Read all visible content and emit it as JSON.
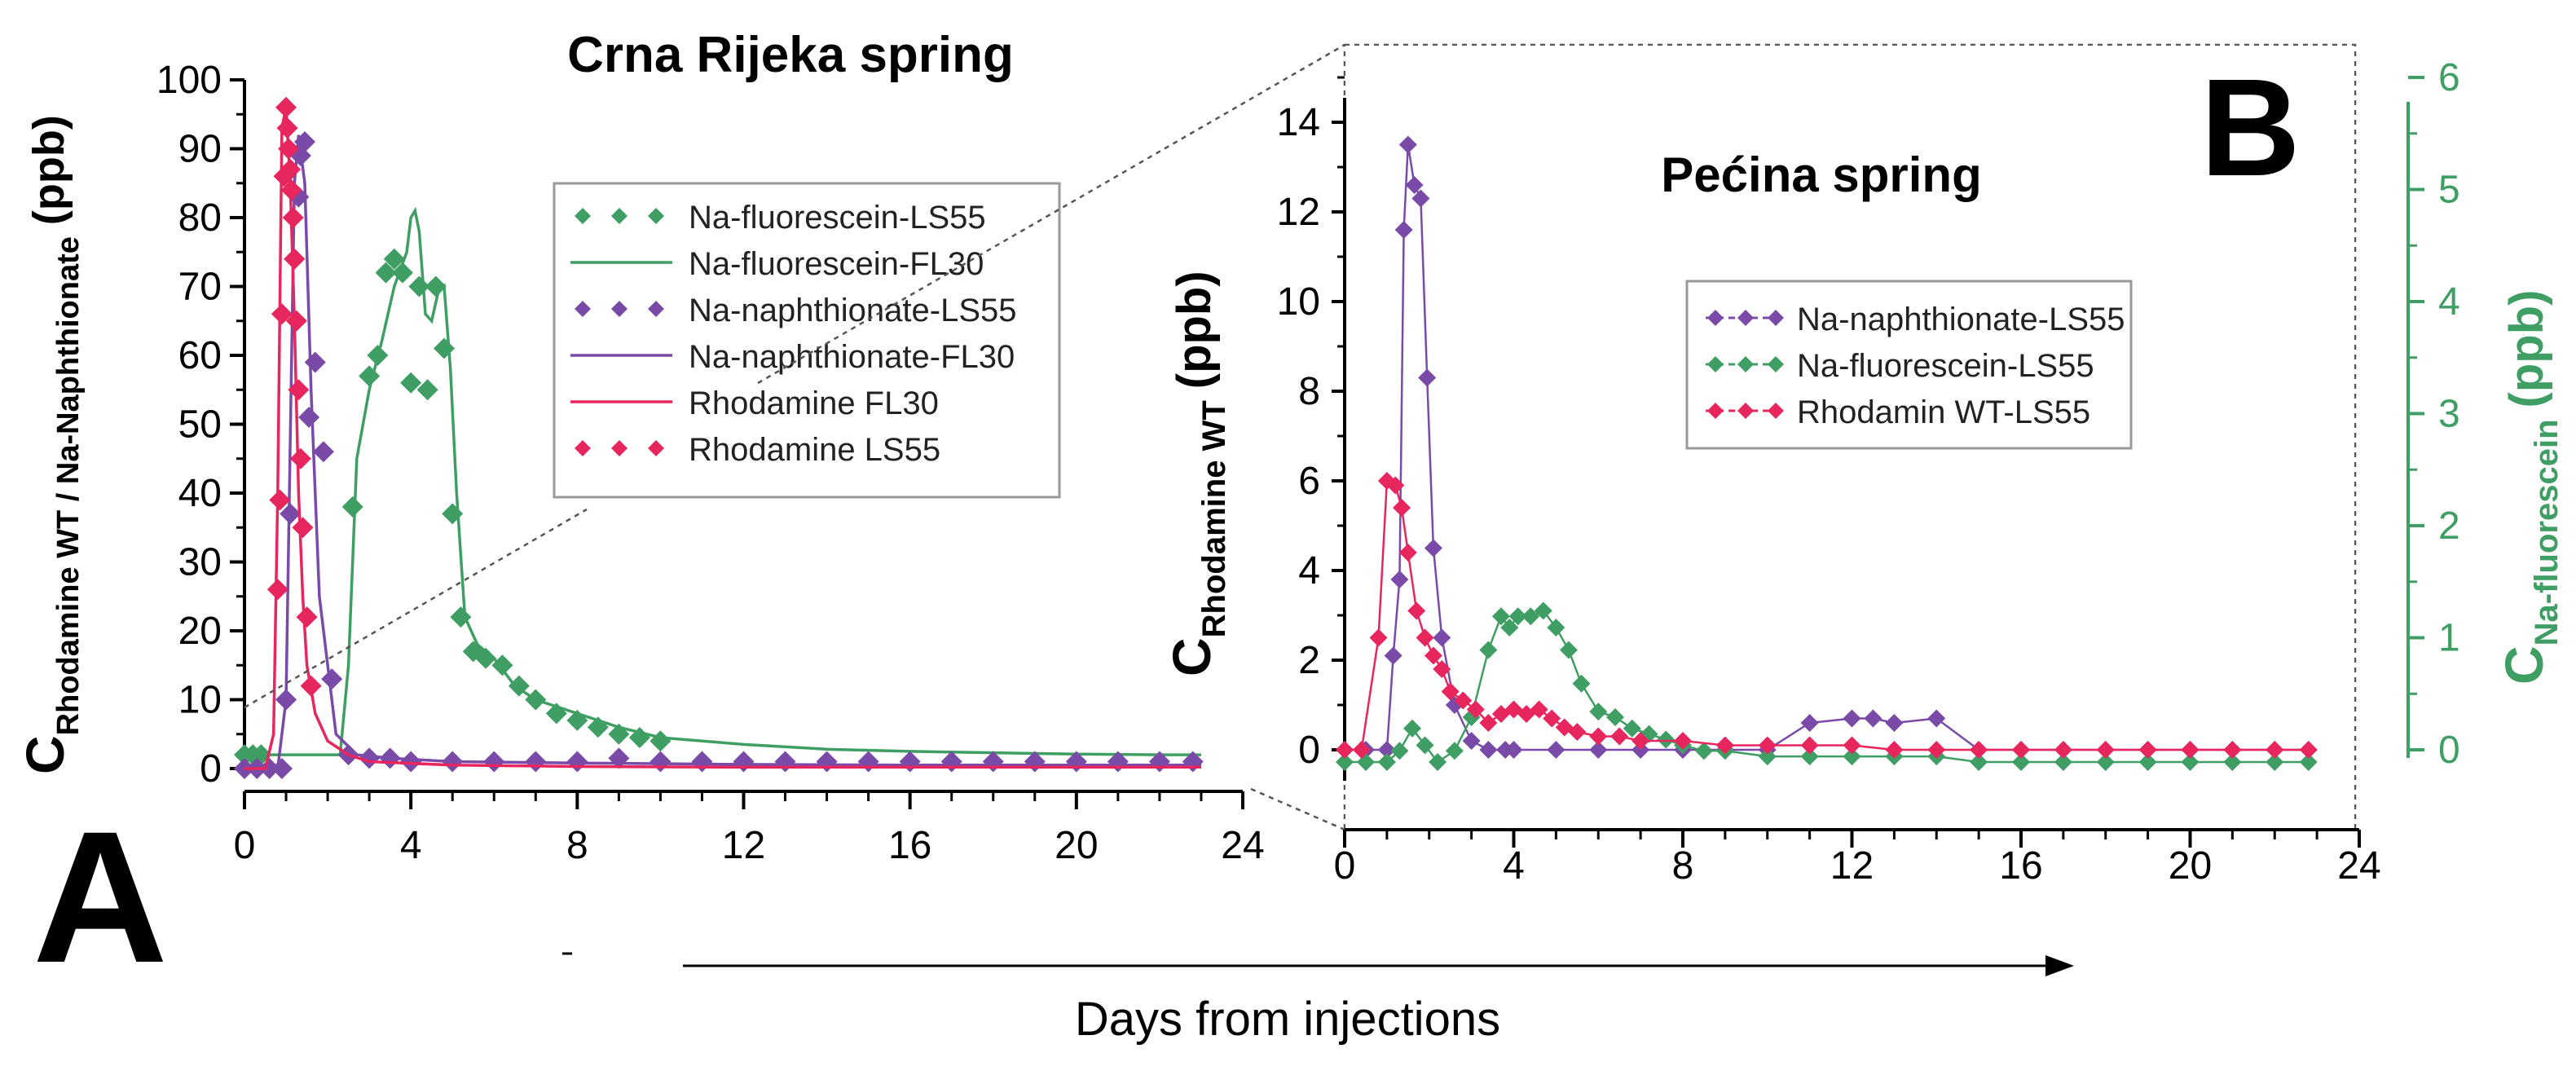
{
  "figure": {
    "shared_xlabel": "Days from injections",
    "colors": {
      "green": "#3f9e63",
      "purple": "#7a4aa8",
      "red": "#e8265e",
      "axis": "#000000",
      "right_axis": "#3f9e63"
    }
  },
  "chart_data": [
    {
      "panel_letter": "A",
      "type": "line",
      "title": "Crna Rijeka spring",
      "ylabel_main": "C",
      "ylabel_sub": "Rhodamine WT / Na-Naphthionate",
      "ylabel_unit": "(ppb)",
      "xlim": [
        0,
        24
      ],
      "ylim": [
        0,
        100
      ],
      "xticks": [
        "0",
        "4",
        "8",
        "12",
        "16",
        "20",
        "24"
      ],
      "yticks": [
        "0",
        "10",
        "20",
        "30",
        "40",
        "50",
        "60",
        "70",
        "80",
        "90",
        "100"
      ],
      "legend": [
        {
          "label": "Na-fluorescein-LS55",
          "style": "markers",
          "color": "green"
        },
        {
          "label": "Na-fluorescein-FL30",
          "style": "line",
          "color": "green"
        },
        {
          "label": "Na-naphthionate-LS55",
          "style": "markers",
          "color": "purple"
        },
        {
          "label": "Na-naphthionate-FL30",
          "style": "line",
          "color": "purple"
        },
        {
          "label": "Rhodamine FL30",
          "style": "line",
          "color": "red"
        },
        {
          "label": "Rhodamine LS55",
          "style": "markers",
          "color": "red"
        }
      ],
      "series": [
        {
          "name": "Na-fluorescein-FL30",
          "style": "line",
          "color": "green",
          "x": [
            0,
            2.3,
            2.5,
            2.7,
            3.0,
            3.3,
            3.6,
            3.9,
            4.0,
            4.1,
            4.2,
            4.35,
            4.5,
            4.65,
            4.8,
            4.95,
            5.1,
            5.3,
            5.6,
            6.0,
            6.5,
            7.0,
            8.0,
            9.0,
            10,
            12,
            14,
            16,
            18,
            20,
            22,
            23
          ],
          "y": [
            2,
            2,
            15,
            45,
            55,
            62,
            70,
            75,
            80,
            81,
            78,
            66,
            65,
            69,
            70,
            58,
            40,
            22,
            18,
            16,
            12,
            10,
            8,
            6,
            4.5,
            3.5,
            2.8,
            2.5,
            2.3,
            2.1,
            2,
            2
          ]
        },
        {
          "name": "Na-fluorescein-LS55",
          "style": "markers",
          "color": "green",
          "x": [
            0,
            0.2,
            0.4,
            2.6,
            3.0,
            3.2,
            3.4,
            3.6,
            3.8,
            4.0,
            4.2,
            4.4,
            4.6,
            4.8,
            5.0,
            5.2,
            5.5,
            5.8,
            6.2,
            6.6,
            7.0,
            7.5,
            8.0,
            8.5,
            9.0,
            9.5,
            10.0
          ],
          "y": [
            2,
            2,
            2,
            38,
            57,
            60,
            72,
            74,
            72,
            56,
            70,
            55,
            70,
            61,
            37,
            22,
            17,
            16,
            15,
            12,
            10,
            8,
            7,
            6,
            5,
            4.5,
            4
          ]
        },
        {
          "name": "Na-naphthionate-FL30",
          "style": "line",
          "color": "purple",
          "x": [
            0,
            0.8,
            1.0,
            1.2,
            1.3,
            1.45,
            1.6,
            1.8,
            2.2,
            2.7,
            3.5,
            5,
            8,
            12,
            16,
            20,
            23
          ],
          "y": [
            0,
            0,
            10,
            85,
            92,
            85,
            55,
            25,
            5,
            2,
            1.5,
            1,
            0.8,
            0.6,
            0.5,
            0.5,
            0.5
          ]
        },
        {
          "name": "Na-naphthionate-LS55",
          "style": "markers",
          "color": "purple",
          "x": [
            0,
            0.3,
            0.6,
            0.9,
            1.0,
            1.1,
            1.2,
            1.3,
            1.35,
            1.45,
            1.55,
            1.7,
            1.9,
            2.1,
            2.5,
            3.0,
            3.5,
            4,
            5,
            6,
            7,
            8,
            9,
            10,
            11,
            12,
            13,
            14,
            15,
            16,
            17,
            18,
            19,
            20,
            21,
            22,
            22.8
          ],
          "y": [
            0,
            0,
            0,
            0,
            10,
            37,
            74,
            83,
            89,
            91,
            51,
            59,
            46,
            13,
            2,
            1.5,
            1.5,
            1,
            1,
            1,
            1,
            1,
            1.5,
            1,
            1,
            1,
            1,
            1,
            1,
            1,
            1,
            1,
            1,
            1,
            1,
            1,
            1
          ]
        },
        {
          "name": "Rhodamine FL30",
          "style": "line",
          "color": "red",
          "x": [
            0,
            0.5,
            0.7,
            0.8,
            0.9,
            1.0,
            1.1,
            1.2,
            1.3,
            1.4,
            1.5,
            1.7,
            2.0,
            2.5,
            3,
            5,
            8,
            12,
            16,
            20,
            23
          ],
          "y": [
            0,
            0,
            5,
            40,
            93,
            96,
            85,
            65,
            40,
            25,
            15,
            8,
            4,
            2,
            1,
            0.5,
            0.3,
            0.2,
            0.2,
            0.2,
            0.2
          ]
        },
        {
          "name": "Rhodamine LS55",
          "style": "markers",
          "color": "red",
          "x": [
            0.8,
            0.85,
            0.9,
            0.95,
            1.0,
            1.03,
            1.06,
            1.1,
            1.13,
            1.17,
            1.2,
            1.25,
            1.3,
            1.35,
            1.4,
            1.5,
            1.6
          ],
          "y": [
            26,
            39,
            66,
            86,
            96,
            93,
            90,
            87,
            84,
            80,
            74,
            65,
            55,
            45,
            35,
            22,
            12
          ]
        }
      ]
    },
    {
      "panel_letter": "B",
      "type": "line",
      "title": "Pećina spring",
      "ylabel_main": "C",
      "ylabel_sub": "Rhodamine WT",
      "ylabel_unit": "(ppb)",
      "ylabel_right_main": "C",
      "ylabel_right_sub": "Na-fluorescein",
      "ylabel_right_unit": "(ppb)",
      "xlim": [
        0,
        24
      ],
      "ylim": [
        0,
        15
      ],
      "ylim_right": [
        0,
        6
      ],
      "xticks": [
        "0",
        "4",
        "8",
        "12",
        "16",
        "20",
        "24"
      ],
      "yticks": [
        "0",
        "2",
        "4",
        "6",
        "8",
        "10",
        "12",
        "14"
      ],
      "yticks_right": [
        "0",
        "1",
        "2",
        "3",
        "4",
        "5",
        "6"
      ],
      "legend": [
        {
          "label": "Na-naphthionate-LS55",
          "style": "dashed-markers",
          "color": "purple"
        },
        {
          "label": "Na-fluorescein-LS55",
          "style": "dashed-markers",
          "color": "green"
        },
        {
          "label": "Rhodamin WT-LS55",
          "style": "dashed-markers",
          "color": "red"
        }
      ],
      "series": [
        {
          "name": "Na-naphthionate-LS55",
          "axis": "left",
          "color": "purple",
          "x": [
            0,
            0.5,
            1.0,
            1.15,
            1.3,
            1.4,
            1.5,
            1.65,
            1.8,
            1.95,
            2.1,
            2.3,
            2.6,
            3.0,
            3.4,
            3.8,
            4,
            5,
            6,
            7,
            8,
            9,
            10,
            11,
            12,
            12.5,
            13,
            14,
            15,
            16,
            17,
            18,
            19,
            20,
            21,
            22,
            22.8
          ],
          "y": [
            0,
            0,
            0,
            2.1,
            3.8,
            11.6,
            13.5,
            12.6,
            12.3,
            8.3,
            4.5,
            2.5,
            1.0,
            0.2,
            0,
            0,
            0,
            0,
            0,
            0,
            0,
            0,
            0,
            0.6,
            0.7,
            0.7,
            0.6,
            0.7,
            0,
            0,
            0,
            0,
            0,
            0,
            0,
            0,
            0
          ]
        },
        {
          "name": "Na-fluorescein-LS55",
          "axis": "right",
          "color": "green",
          "x": [
            0,
            0.5,
            1.0,
            1.3,
            1.6,
            1.9,
            2.2,
            2.6,
            3.0,
            3.4,
            3.7,
            3.9,
            4.1,
            4.4,
            4.7,
            5.0,
            5.3,
            5.6,
            6.0,
            6.4,
            6.8,
            7.2,
            7.6,
            8,
            8.5,
            9,
            10,
            11,
            12,
            13,
            14,
            15,
            16,
            17,
            18,
            19,
            20,
            21,
            22,
            22.8
          ],
          "y": [
            0,
            0,
            0,
            0.1,
            0.3,
            0.15,
            0,
            0.1,
            0.4,
            1.0,
            1.3,
            1.2,
            1.3,
            1.3,
            1.35,
            1.2,
            1.0,
            0.7,
            0.45,
            0.4,
            0.3,
            0.25,
            0.2,
            0.15,
            0.1,
            0.1,
            0.05,
            0.05,
            0.05,
            0.05,
            0.05,
            0,
            0,
            0,
            0,
            0,
            0,
            0,
            0,
            0
          ]
        },
        {
          "name": "Rhodamin WT-LS55",
          "axis": "left",
          "color": "red",
          "x": [
            0,
            0.4,
            0.8,
            1.0,
            1.2,
            1.35,
            1.5,
            1.7,
            1.9,
            2.1,
            2.3,
            2.5,
            2.8,
            3.1,
            3.4,
            3.7,
            4.0,
            4.3,
            4.6,
            4.9,
            5.2,
            5.5,
            6,
            6.5,
            7,
            8,
            9,
            10,
            11,
            12,
            13,
            14,
            15,
            16,
            17,
            18,
            19,
            20,
            21,
            22,
            22.8
          ],
          "y": [
            0,
            0,
            2.5,
            6.0,
            5.9,
            5.4,
            4.4,
            3.1,
            2.5,
            2.1,
            1.8,
            1.3,
            1.1,
            0.9,
            0.6,
            0.8,
            0.9,
            0.8,
            0.9,
            0.7,
            0.5,
            0.4,
            0.3,
            0.3,
            0.2,
            0.2,
            0.1,
            0.1,
            0.1,
            0.1,
            0,
            0,
            0,
            0,
            0,
            0,
            0,
            0,
            0,
            0,
            0
          ]
        }
      ]
    }
  ]
}
